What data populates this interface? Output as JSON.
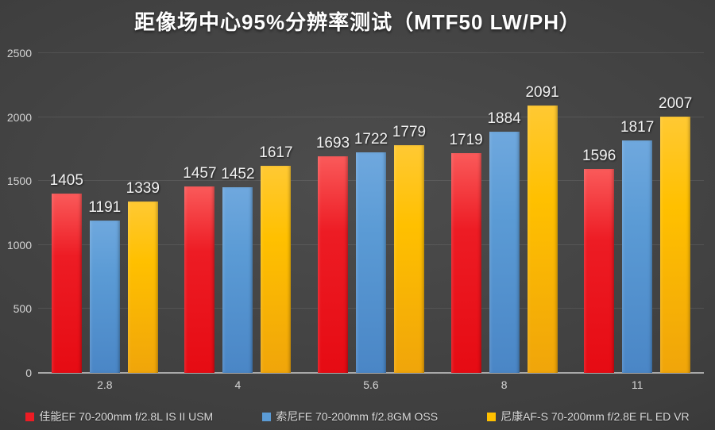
{
  "title": "距像场中心95%分辨率测试（MTF50 LW/PH）",
  "colors": {
    "background_center": "#4d4d4d",
    "background_edge": "#2c2c2c",
    "axis_text": "#d4d4d4",
    "value_label_text": "#f2f2f2",
    "gridline": "rgba(255,255,255,0.09)",
    "axis_baseline": "#a9a9a9",
    "canon_red": "#ed1c24",
    "sony_blue": "#5b9bd5",
    "nikon_yellow": "#ffc000"
  },
  "chart_data": {
    "type": "bar",
    "title": "距像场中心95%分辨率测试（MTF50 LW/PH）",
    "xlabel": "",
    "ylabel": "",
    "categories": [
      "2.8",
      "4",
      "5.6",
      "8",
      "11"
    ],
    "series": [
      {
        "name": "佳能EF 70-200mm f/2.8L IS II USM",
        "color": "#ed1c24",
        "color_top": "#fa5a5a",
        "color_bottom": "#e60b13",
        "values": [
          1405,
          1457,
          1693,
          1719,
          1596
        ]
      },
      {
        "name": "索尼FE 70-200mm f/2.8GM OSS",
        "color": "#5b9bd5",
        "color_top": "#6fa8de",
        "color_bottom": "#4a86c6",
        "values": [
          1191,
          1452,
          1722,
          1884,
          1817
        ]
      },
      {
        "name": "尼康AF-S 70-200mm f/2.8E FL ED VR",
        "color": "#ffc000",
        "color_top": "#ffc933",
        "color_bottom": "#f0a50a",
        "values": [
          1339,
          1617,
          1779,
          2091,
          2007
        ]
      }
    ],
    "ylim": [
      0,
      2500
    ],
    "y_ticks": [
      0,
      500,
      1000,
      1500,
      2000,
      2500
    ],
    "grid": true,
    "legend_position": "bottom"
  }
}
